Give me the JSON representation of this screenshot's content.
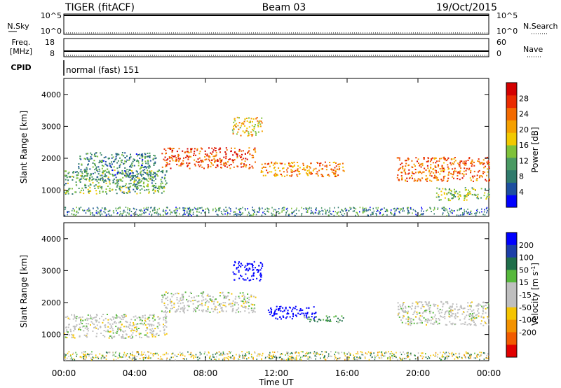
{
  "header": {
    "title": "TIGER (fitACF)",
    "beam": "Beam 03",
    "date": "19/Oct/2015"
  },
  "strips": {
    "nsky_label": "N.Sky",
    "nsearch_label": "N.Search",
    "freq_label_1": "Freq.",
    "freq_label_2": "[MHz]",
    "nave_label": "Nave",
    "cpid_label": "CPID",
    "cpid_text": "normal (fast) 151",
    "nsky_ticks": [
      "10^5",
      "10^0"
    ],
    "nsearch_ticks": [
      "10^5",
      "10^0"
    ],
    "freq_ticks": [
      "18",
      "8"
    ],
    "nave_ticks": [
      "60",
      "0"
    ]
  },
  "colors": {
    "power": [
      "#0000ff",
      "#1d4fa0",
      "#2f7a6c",
      "#4a9a63",
      "#7fc23a",
      "#f2c900",
      "#f5a000",
      "#f36a00",
      "#ea2b00",
      "#d40000"
    ],
    "velocity": [
      "#0000ff",
      "#1c3fa8",
      "#1f6e4a",
      "#56b83c",
      "#bfbfbf",
      "#bfbfbf",
      "#f5c400",
      "#f39200",
      "#f25b00",
      "#e10000"
    ],
    "ground": "#bfbfbf"
  },
  "chart_data": [
    {
      "type": "heatmap",
      "panel": "power",
      "xlabel": "",
      "ylabel": "Slant Range [km]",
      "xlim": [
        0,
        24
      ],
      "ylim": [
        180,
        4500
      ],
      "y_ticks": [
        1000,
        2000,
        3000,
        4000
      ],
      "colorbar": {
        "label": "Power [dB]",
        "range": [
          0,
          32
        ],
        "tick_values": [
          4,
          8,
          12,
          16,
          20,
          24,
          28
        ],
        "tick_labels": [
          "4",
          "8",
          "12",
          "16",
          "20",
          "24",
          "28"
        ]
      },
      "echo_features": [
        {
          "t_start": 0.0,
          "t_end": 5.8,
          "range_start": 900,
          "range_end": 1650,
          "power_db": 12
        },
        {
          "t_start": 0.8,
          "t_end": 5.2,
          "range_start": 1300,
          "range_end": 2200,
          "power_db": 9
        },
        {
          "t_start": 5.5,
          "t_end": 10.8,
          "range_start": 1700,
          "range_end": 2350,
          "power_db": 26
        },
        {
          "t_start": 9.5,
          "t_end": 11.2,
          "range_start": 2700,
          "range_end": 3300,
          "power_db": 18
        },
        {
          "t_start": 11.0,
          "t_end": 15.8,
          "range_start": 1450,
          "range_end": 1900,
          "power_db": 22
        },
        {
          "t_start": 18.8,
          "t_end": 24.0,
          "range_start": 1300,
          "range_end": 2050,
          "power_db": 24
        },
        {
          "t_start": 21.0,
          "t_end": 24.0,
          "range_start": 700,
          "range_end": 1100,
          "power_db": 14
        }
      ]
    },
    {
      "type": "heatmap",
      "panel": "velocity",
      "xlabel": "Time UT",
      "ylabel": "Slant Range [km]",
      "xlim": [
        0,
        24
      ],
      "ylim": [
        180,
        4500
      ],
      "x_ticks": [
        0,
        4,
        8,
        12,
        16,
        20,
        24
      ],
      "x_tick_labels": [
        "00:00",
        "04:00",
        "08:00",
        "12:00",
        "16:00",
        "20:00",
        "00:00"
      ],
      "y_ticks": [
        1000,
        2000,
        3000,
        4000
      ],
      "colorbar": {
        "label_base": "Velocity [m s",
        "label_sup": "-1",
        "label_end": "]",
        "tick_labels": [
          "200",
          "100",
          "50",
          "15",
          "-15",
          "-50",
          "-100",
          "-200"
        ]
      },
      "echo_features": [
        {
          "t_start": 0.0,
          "t_end": 5.8,
          "range_start": 900,
          "range_end": 1650,
          "velocity": 0
        },
        {
          "t_start": 5.5,
          "t_end": 10.8,
          "range_start": 1700,
          "range_end": 2350,
          "velocity": 0
        },
        {
          "t_start": 9.5,
          "t_end": 11.2,
          "range_start": 2700,
          "range_end": 3300,
          "velocity": 180
        },
        {
          "t_start": 11.5,
          "t_end": 14.2,
          "range_start": 1500,
          "range_end": 1900,
          "velocity": 220
        },
        {
          "t_start": 13.5,
          "t_end": 15.8,
          "range_start": 1400,
          "range_end": 1600,
          "velocity": 30
        },
        {
          "t_start": 18.8,
          "t_end": 24.0,
          "range_start": 1300,
          "range_end": 2050,
          "velocity": 0
        }
      ]
    }
  ]
}
